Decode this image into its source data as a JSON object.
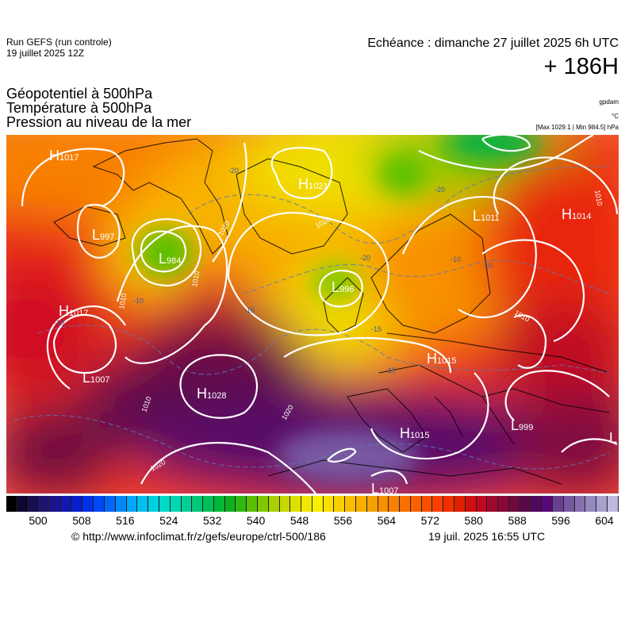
{
  "header": {
    "run_line1": "Run GEFS (run controle)",
    "run_line2": "19 juillet 2025 12Z",
    "echeance": "Echéance : dimanche 27 juillet 2025 6h UTC",
    "lead": "+ 186H",
    "title1": "Géopotentiel à 500hPa",
    "title2": "Température à 500hPa",
    "title3": "Pression au niveau de la mer",
    "unit_geo": "gpdam",
    "unit_temp": "°C",
    "unit_press": "[Max 1029.1 | Min 984.5] hPa"
  },
  "map": {
    "lows": [
      {
        "letter": "L",
        "value": "997"
      },
      {
        "letter": "L",
        "value": "984"
      },
      {
        "letter": "L",
        "value": "1007"
      },
      {
        "letter": "L",
        "value": "996"
      },
      {
        "letter": "L",
        "value": "1011"
      },
      {
        "letter": "L",
        "value": "999"
      },
      {
        "letter": "L",
        "value": "1007"
      },
      {
        "letter": "L",
        "value": ""
      }
    ],
    "highs": [
      {
        "letter": "H",
        "value": "1017"
      },
      {
        "letter": "H",
        "value": "1017"
      },
      {
        "letter": "H",
        "value": "1028"
      },
      {
        "letter": "H",
        "value": "1021"
      },
      {
        "letter": "H",
        "value": "1014"
      },
      {
        "letter": "H",
        "value": "1015"
      },
      {
        "letter": "H",
        "value": "1015"
      }
    ],
    "isobar_labels": [
      "1020",
      "1010",
      "1010",
      "1020",
      "1020",
      "1010",
      "1010",
      "1020",
      "1010"
    ],
    "isotherm_labels": [
      "-20",
      "-20",
      "-20",
      "-15",
      "-10",
      "-10",
      "-10",
      "-15",
      "-10",
      "-15"
    ]
  },
  "colorbar": {
    "ticks": [
      "500",
      "508",
      "516",
      "524",
      "532",
      "540",
      "548",
      "556",
      "564",
      "572",
      "580",
      "588",
      "596",
      "604"
    ],
    "colors": [
      "#000000",
      "#0c0830",
      "#180e50",
      "#1e1470",
      "#1a1490",
      "#1018b0",
      "#0620d0",
      "#0030e8",
      "#0048f8",
      "#0068f8",
      "#0088f8",
      "#00a8f8",
      "#00c0f0",
      "#00d0e0",
      "#00d8c8",
      "#00d8b0",
      "#00d098",
      "#00c878",
      "#00c058",
      "#00b838",
      "#10b020",
      "#30b810",
      "#58c000",
      "#80c800",
      "#a8d000",
      "#c8d800",
      "#e0e000",
      "#f0e800",
      "#f8f000",
      "#f8e000",
      "#f8d000",
      "#f8c000",
      "#f8b000",
      "#f8a000",
      "#f89000",
      "#f88000",
      "#f87000",
      "#f86000",
      "#f85000",
      "#f84000",
      "#f03000",
      "#e02000",
      "#d01010",
      "#c00820",
      "#a00830",
      "#880838",
      "#700840",
      "#580848",
      "#500860",
      "#580878",
      "#684090",
      "#7858a0",
      "#8870b0",
      "#9888c0",
      "#a8a0d0",
      "#c0b8e0"
    ]
  },
  "footer": {
    "credit": "© http://www.infoclimat.fr/z/gefs/europe/ctrl-500/186",
    "generated": "19 juil. 2025 16:55 UTC"
  }
}
